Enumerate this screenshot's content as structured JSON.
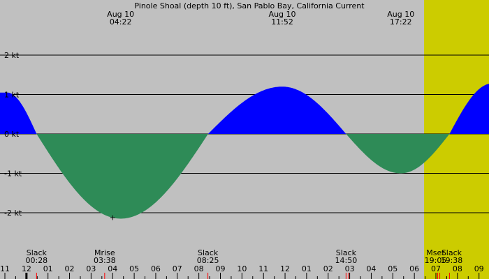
{
  "chart_data": {
    "type": "area",
    "title": "Pinole Shoal (depth 10 ft), San Pablo Bay, California Current",
    "colors": {
      "night_background": "#c0c0c0",
      "daylight_background": "#cccc00",
      "flood": "#0000ff",
      "ebb": "#2e8b57",
      "gridline": "#000000",
      "event_tick": "#ff0000"
    },
    "x_range_hours": [
      -13.0,
      9.6
    ],
    "ylim": [
      -2.3,
      2.45
    ],
    "y_ticks": [
      {
        "value": 2,
        "label": "2 kt"
      },
      {
        "value": 1,
        "label": "1 kt"
      },
      {
        "value": 0,
        "label": "0 kt"
      },
      {
        "value": -1,
        "label": "-1 kt"
      },
      {
        "value": -2,
        "label": "-2 kt"
      }
    ],
    "daylight_hours": [
      6.45,
      20.25
    ],
    "x_ticks": [
      {
        "hour": -13,
        "label": "11"
      },
      {
        "hour": -12,
        "label": "12"
      },
      {
        "hour": -11,
        "label": "01"
      },
      {
        "hour": -10,
        "label": "02"
      },
      {
        "hour": -9,
        "label": "03"
      },
      {
        "hour": -8,
        "label": "04"
      },
      {
        "hour": -7,
        "label": "05"
      },
      {
        "hour": -6,
        "label": "06"
      },
      {
        "hour": -5,
        "label": "07"
      },
      {
        "hour": -4,
        "label": "08"
      },
      {
        "hour": -3,
        "label": "09"
      },
      {
        "hour": -2,
        "label": "10"
      },
      {
        "hour": -1,
        "label": "11"
      },
      {
        "hour": 0,
        "label": "12"
      },
      {
        "hour": 1,
        "label": "01"
      },
      {
        "hour": 2,
        "label": "02"
      },
      {
        "hour": 3,
        "label": "03"
      },
      {
        "hour": 4,
        "label": "04"
      },
      {
        "hour": 5,
        "label": "05"
      },
      {
        "hour": 6,
        "label": "06"
      },
      {
        "hour": 7,
        "label": "07"
      },
      {
        "hour": 8,
        "label": "08"
      },
      {
        "hour": 9,
        "label": "09"
      }
    ],
    "current_points": [
      {
        "hour": -12.9,
        "kt": 1.05
      },
      {
        "hour": -11.53,
        "kt": 0
      },
      {
        "hour": -7.63,
        "kt": -2.15
      },
      {
        "hour": -3.57,
        "kt": 0
      },
      {
        "hour": -0.13,
        "kt": 1.2
      },
      {
        "hour": 2.83,
        "kt": 0
      },
      {
        "hour": 5.37,
        "kt": -1.0
      },
      {
        "hour": 7.63,
        "kt": 0
      },
      {
        "hour": 9.6,
        "kt": 1.28
      }
    ],
    "top_labels": [
      {
        "hour": -7.63,
        "date": "Aug 10",
        "time": "04:22"
      },
      {
        "hour": -0.13,
        "date": "Aug 10",
        "time": "11:52"
      },
      {
        "hour": 5.37,
        "date": "Aug 10",
        "time": "17:22"
      }
    ],
    "bottom_events": [
      {
        "hour": -11.53,
        "label": "Slack",
        "time": "00:28"
      },
      {
        "hour": -8.37,
        "label": "Mrise",
        "time": "03:38"
      },
      {
        "hour": -3.58,
        "label": "Slack",
        "time": "08:25"
      },
      {
        "hour": 2.83,
        "label": "Slack",
        "time": "14:50"
      },
      {
        "hour": 7.08,
        "label": "Mset",
        "time": "19:05"
      },
      {
        "hour": 7.63,
        "label": "Slack",
        "time": "19:38"
      }
    ],
    "red_tick_hours": [
      -11.53,
      -8.37,
      -3.58,
      2.83,
      2.95,
      7.08,
      7.18,
      7.63
    ],
    "marker": {
      "hour": -8.0,
      "kt": -2.1,
      "symbol": "+"
    }
  }
}
